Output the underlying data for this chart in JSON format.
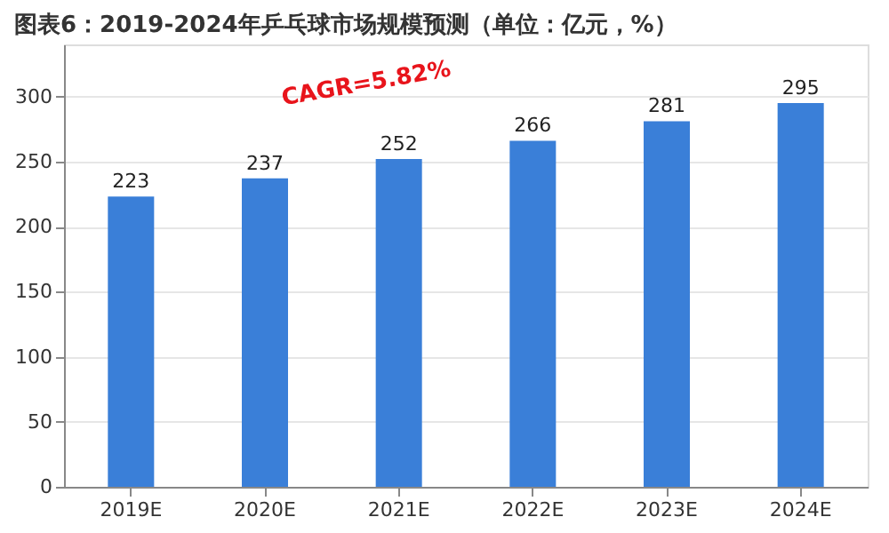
{
  "chart_data": {
    "type": "bar",
    "title": "图表6：2019-2024年乒乓球市场规模预测（单位：亿元，%）",
    "categories": [
      "2019E",
      "2020E",
      "2021E",
      "2022E",
      "2023E",
      "2024E"
    ],
    "values": [
      223,
      237,
      252,
      266,
      281,
      295
    ],
    "color": "#3a7fd8",
    "ylim": [
      0,
      340
    ],
    "yticks": [
      0,
      50,
      100,
      150,
      200,
      250,
      300
    ],
    "grid": "y",
    "data_labels": true,
    "annotations": [
      "CAGR=5.82%"
    ]
  }
}
